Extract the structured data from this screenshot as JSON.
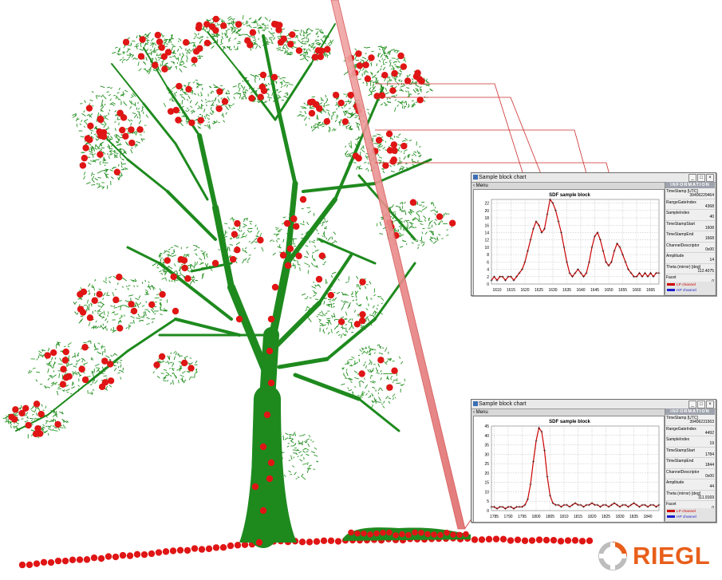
{
  "windows": [
    {
      "title": "Sample block chart",
      "menu": "Menu",
      "window_buttons": [
        "_",
        "□",
        "×"
      ],
      "info_header": "INFORMATION",
      "info": [
        {
          "label": "TimeStamp [UTC]",
          "value": "39406229464"
        },
        {
          "label": "RangeGateIndex",
          "value": "4368"
        },
        {
          "label": "SampleIndex",
          "value": "40"
        },
        {
          "label": "TimeStampStart",
          "value": "1608"
        },
        {
          "label": "TimeStampEnd",
          "value": "1668"
        },
        {
          "label": "ChannelDescriptor",
          "value": "0x00"
        },
        {
          "label": "Amplitude",
          "value": "14"
        },
        {
          "label": "Theta (mirror) [deg]",
          "value": "112.4075"
        },
        {
          "label": "Facet",
          "value": "0"
        }
      ],
      "legend": [
        {
          "label": "LP channel",
          "color": "#cc0000"
        },
        {
          "label": "HP channel",
          "color": "#1a1acc"
        }
      ]
    },
    {
      "title": "Sample block chart",
      "menu": "Menu",
      "window_buttons": [
        "_",
        "□",
        "×"
      ],
      "info_header": "INFORMATION",
      "info": [
        {
          "label": "TimeStamp [UTC]",
          "value": "39406231563"
        },
        {
          "label": "RangeGateIndex",
          "value": "4492"
        },
        {
          "label": "SampleIndex",
          "value": "19"
        },
        {
          "label": "TimeStampStart",
          "value": "1784"
        },
        {
          "label": "TimeStampEnd",
          "value": "1844"
        },
        {
          "label": "ChannelDescriptor",
          "value": "0x00"
        },
        {
          "label": "Amplitude",
          "value": "44"
        },
        {
          "label": "Theta (mirror) [deg]",
          "value": "111.9169"
        },
        {
          "label": "Facet",
          "value": "0"
        }
      ],
      "legend": [
        {
          "label": "LP channel",
          "color": "#cc0000"
        },
        {
          "label": "HP channel",
          "color": "#1a1acc"
        }
      ]
    }
  ],
  "chart_data": [
    {
      "type": "line",
      "title": "SDF sample block",
      "xlabel": "",
      "ylabel": "",
      "xlim": [
        1608,
        1668
      ],
      "ylim": [
        0,
        23
      ],
      "xticks": [
        1610,
        1615,
        1620,
        1625,
        1630,
        1635,
        1640,
        1645,
        1650,
        1655,
        1660,
        1665
      ],
      "yticks": [
        0,
        2,
        4,
        6,
        8,
        10,
        12,
        14,
        16,
        18,
        20,
        22
      ],
      "grid": true,
      "series": [
        {
          "name": "LP channel",
          "color": "#cc0000",
          "x": [
            1608,
            1609,
            1610,
            1611,
            1612,
            1613,
            1614,
            1615,
            1616,
            1617,
            1618,
            1619,
            1620,
            1621,
            1622,
            1623,
            1624,
            1625,
            1626,
            1627,
            1628,
            1629,
            1630,
            1631,
            1632,
            1633,
            1634,
            1635,
            1636,
            1637,
            1638,
            1639,
            1640,
            1641,
            1642,
            1643,
            1644,
            1645,
            1646,
            1647,
            1648,
            1649,
            1650,
            1651,
            1652,
            1653,
            1654,
            1655,
            1656,
            1657,
            1658,
            1659,
            1660,
            1661,
            1662,
            1663,
            1664,
            1665,
            1666,
            1667,
            1668
          ],
          "y": [
            1,
            2,
            1,
            2,
            2,
            1,
            2,
            2,
            1,
            2,
            3,
            4,
            6,
            9,
            12,
            15,
            17,
            16,
            14,
            15,
            19,
            23,
            22,
            20,
            17,
            14,
            10,
            6,
            3,
            2,
            3,
            4,
            3,
            2,
            3,
            6,
            10,
            13,
            14,
            12,
            9,
            6,
            5,
            6,
            9,
            11,
            10,
            8,
            6,
            4,
            3,
            2,
            2,
            3,
            2,
            3,
            2,
            3,
            2,
            3,
            3
          ]
        }
      ]
    },
    {
      "type": "line",
      "title": "SDF sample block",
      "xlabel": "",
      "ylabel": "",
      "xlim": [
        1784,
        1844
      ],
      "ylim": [
        0,
        45
      ],
      "xticks": [
        1785,
        1790,
        1795,
        1800,
        1805,
        1810,
        1815,
        1820,
        1825,
        1830,
        1835,
        1840
      ],
      "yticks": [
        0,
        5,
        10,
        15,
        20,
        25,
        30,
        35,
        40,
        45
      ],
      "grid": true,
      "series": [
        {
          "name": "LP channel",
          "color": "#cc0000",
          "x": [
            1784,
            1785,
            1786,
            1787,
            1788,
            1789,
            1790,
            1791,
            1792,
            1793,
            1794,
            1795,
            1796,
            1797,
            1798,
            1799,
            1800,
            1801,
            1802,
            1803,
            1804,
            1805,
            1806,
            1807,
            1808,
            1809,
            1810,
            1811,
            1812,
            1813,
            1814,
            1815,
            1816,
            1817,
            1818,
            1819,
            1820,
            1821,
            1822,
            1823,
            1824,
            1825,
            1826,
            1827,
            1828,
            1829,
            1830,
            1831,
            1832,
            1833,
            1834,
            1835,
            1836,
            1837,
            1838,
            1839,
            1840,
            1841,
            1842,
            1843,
            1844
          ],
          "y": [
            2,
            2,
            1,
            2,
            2,
            1,
            2,
            2,
            1,
            2,
            2,
            2,
            3,
            6,
            14,
            26,
            37,
            44,
            42,
            32,
            18,
            8,
            4,
            3,
            3,
            2,
            3,
            3,
            2,
            3,
            4,
            3,
            3,
            2,
            3,
            3,
            4,
            3,
            3,
            2,
            3,
            3,
            2,
            3,
            4,
            3,
            2,
            3,
            3,
            2,
            3,
            4,
            3,
            2,
            3,
            3,
            2,
            3,
            3,
            2,
            3
          ]
        }
      ]
    }
  ],
  "logo": {
    "text": "RIEGL",
    "color": "#e85f1b"
  }
}
